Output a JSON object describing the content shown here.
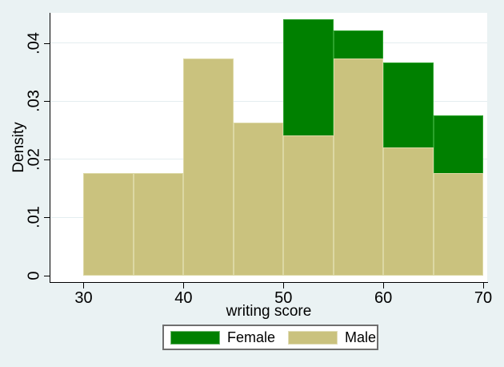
{
  "figure": {
    "background": "#eaf2f3",
    "plot_background": "#ffffff",
    "gridline_color": "#e4edf0",
    "axis_color": "#000000",
    "text_color": "#000000",
    "legend_border_color": "#6f6f6f",
    "legend_background": "#ffffff"
  },
  "chart_data": {
    "type": "bar",
    "subtype": "overlaid-histogram",
    "title": "",
    "xlabel": "writing score",
    "ylabel": "Density",
    "xlim": [
      26.6,
      70.4
    ],
    "ylim": [
      0,
      0.0452
    ],
    "bin_width": 5,
    "grid": "horizontal-gridlines-only",
    "legend_position": "bottom-center",
    "x_ticks": [
      {
        "value": 30,
        "label": "30"
      },
      {
        "value": 40,
        "label": "40"
      },
      {
        "value": 50,
        "label": "50"
      },
      {
        "value": 60,
        "label": "60"
      },
      {
        "value": 70,
        "label": "70"
      }
    ],
    "y_ticks": [
      {
        "value": 0,
        "label": "0"
      },
      {
        "value": 0.01,
        "label": ".01"
      },
      {
        "value": 0.02,
        "label": ".02"
      },
      {
        "value": 0.03,
        "label": ".03"
      },
      {
        "value": 0.04,
        "label": ".04"
      }
    ],
    "draw_order": [
      "Female",
      "Male"
    ],
    "series": [
      {
        "name": "Female",
        "color": "#008000",
        "border_color": "#2ba32b",
        "bins": [
          {
            "start": 50,
            "end": 55,
            "density": 0.04404
          },
          {
            "start": 55,
            "end": 60,
            "density": 0.0422
          },
          {
            "start": 60,
            "end": 65,
            "density": 0.0367
          },
          {
            "start": 65,
            "end": 70,
            "density": 0.02752
          }
        ]
      },
      {
        "name": "Male",
        "color": "#cac27e",
        "border_color": "#dcd8a4",
        "bins": [
          {
            "start": 30,
            "end": 35,
            "density": 0.01758
          },
          {
            "start": 35,
            "end": 40,
            "density": 0.01758
          },
          {
            "start": 40,
            "end": 45,
            "density": 0.03736
          },
          {
            "start": 45,
            "end": 50,
            "density": 0.02637
          },
          {
            "start": 50,
            "end": 55,
            "density": 0.02418
          },
          {
            "start": 55,
            "end": 60,
            "density": 0.03736
          },
          {
            "start": 60,
            "end": 65,
            "density": 0.02198
          },
          {
            "start": 65,
            "end": 70,
            "density": 0.01758
          }
        ]
      }
    ]
  },
  "legend": {
    "entries": [
      {
        "label": "Female",
        "color": "#008000"
      },
      {
        "label": "Male",
        "color": "#cac27e"
      }
    ]
  }
}
